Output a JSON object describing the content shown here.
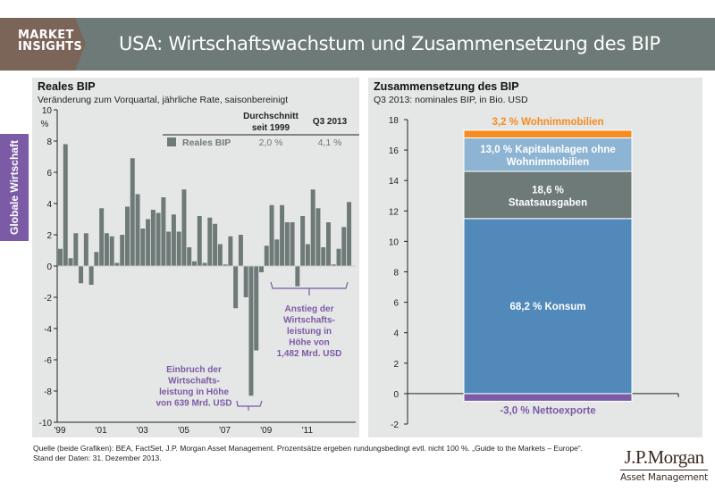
{
  "header": {
    "badge_line1": "MARKET",
    "badge_line2": "INSIGHTS",
    "title": "USA: Wirtschaftswachstum und Zusammensetzung des BIP"
  },
  "side_tab": {
    "label": "Globale Wirtschaft",
    "color": "#7b5aa6"
  },
  "left_panel": {
    "title": "Reales BIP",
    "subtitle": "Veränderung zum Vorquartal, jährliche Rate, saisonbereinigt",
    "table": {
      "col1_header_line1": "Durchschnitt",
      "col1_header_line2": "seit 1999",
      "col2_header": "Q3 2013",
      "row_label": "Reales BIP",
      "avg_value": "2,0 %",
      "q3_value": "4,1 %"
    },
    "annotation_crash": [
      "Einbruch der",
      "Wirtschafts-",
      "leistung in Höhe",
      "von 639 Mrd. USD"
    ],
    "annotation_rise": [
      "Anstieg der",
      "Wirtschafts-",
      "leistung in",
      "Höhe von",
      "1,482 Mrd. USD"
    ]
  },
  "right_panel": {
    "title": "Zusammensetzung des BIP",
    "subtitle": "Q3 2013: nominales BIP, in Bio. USD"
  },
  "footer": {
    "source": "Quelle (beide Grafiken): BEA, FactSet, J.P. Morgan Asset Management. Prozentsätze ergeben rundungsbedingt evtl. nicht 100 %. „Guide to the Markets – Europe“.",
    "date": "Stand der Daten: 31. Dezember 2013."
  },
  "logo": {
    "main": "J.P.Morgan",
    "sub": "Asset Management"
  },
  "chart_data": [
    {
      "type": "bar",
      "title": "Reales BIP",
      "subtitle": "Veränderung zum Vorquartal, jährliche Rate, saisonbereinigt",
      "ylabel": "%",
      "ylim": [
        -10,
        10
      ],
      "yticks": [
        10,
        8,
        6,
        4,
        2,
        0,
        -2,
        -4,
        -6,
        -8,
        -10
      ],
      "xtick_labels": [
        "'99",
        "'01",
        "'03",
        "'05",
        "'07",
        "'09",
        "'11"
      ],
      "x_start": "Q1 1999",
      "x_end": "Q3 2013",
      "color": "#6e7a77",
      "legend": "Reales BIP",
      "values": [
        1.1,
        7.8,
        0.5,
        2.1,
        -1.1,
        2.1,
        -1.2,
        0.9,
        3.7,
        2.1,
        1.9,
        0.2,
        2.0,
        3.8,
        6.9,
        4.6,
        2.4,
        3.0,
        3.6,
        3.4,
        4.4,
        2.2,
        3.3,
        2.2,
        4.9,
        1.2,
        0.3,
        3.2,
        0.2,
        3.1,
        2.7,
        1.4,
        0.1,
        1.9,
        -2.7,
        2.0,
        -2.0,
        -8.3,
        -5.4,
        -0.4,
        1.3,
        3.9,
        1.7,
        3.9,
        2.8,
        2.8,
        -1.3,
        3.2,
        1.4,
        4.9,
        3.7,
        1.2,
        2.8,
        0.1,
        1.1,
        2.5,
        4.1
      ]
    },
    {
      "type": "bar",
      "subtype": "stacked",
      "title": "Zusammensetzung des BIP",
      "subtitle": "Q3 2013: nominales BIP, in Bio. USD",
      "ylim": [
        -2,
        18
      ],
      "yticks": [
        18,
        16,
        14,
        12,
        10,
        8,
        6,
        4,
        2,
        0,
        -2
      ],
      "segments": [
        {
          "name": "Nettoexporte",
          "label": "-3,0 %  Nettoexporte",
          "start": 0,
          "end": -0.5,
          "color": "#7b5aa6",
          "label_color": "#7b5aa6"
        },
        {
          "name": "Konsum",
          "label": "68,2 % Konsum",
          "start": 0,
          "end": 11.5,
          "color": "#5089ba",
          "label_color": "#ffffff"
        },
        {
          "name": "Staatsausgaben",
          "label_line1": "18,6 %",
          "label_line2": "Staatsausgaben",
          "start": 11.5,
          "end": 14.6,
          "color": "#6e7a77",
          "label_color": "#ffffff"
        },
        {
          "name": "Kapitalanlagen ohne Wohnimmobilien",
          "label_line1": "13,0 % Kapitalanlagen ohne",
          "label_line2": "Wohnimmobilien",
          "start": 14.6,
          "end": 16.8,
          "color": "#8db4d3",
          "label_color": "#ffffff"
        },
        {
          "name": "Wohnimmobilien",
          "label": "3,2 % Wohnimmobilien",
          "start": 16.8,
          "end": 17.3,
          "color": "#f68b1f",
          "label_color": "#f68b1f"
        }
      ]
    }
  ]
}
